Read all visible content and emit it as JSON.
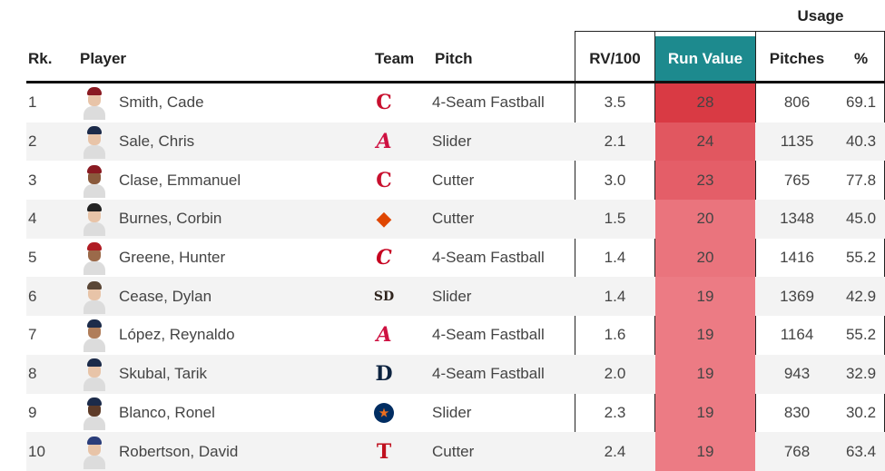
{
  "header": {
    "usage_group": "Usage",
    "rank": "Rk.",
    "player": "Player",
    "team": "Team",
    "pitch": "Pitch",
    "rv100": "RV/100",
    "run_value": "Run Value",
    "pitches": "Pitches",
    "pct": "%"
  },
  "colors": {
    "run_value_header": "#1d8a8e",
    "run_value_high": "#d93a44",
    "run_value_low": "#ec7b84"
  },
  "rows": [
    {
      "rank": "1",
      "player": "Smith, Cade",
      "team_icon": "guardians-c-logo",
      "pitch": "4-Seam Fastball",
      "rv100": "3.5",
      "run_value": "28",
      "pitches": "806",
      "pct": "69.1"
    },
    {
      "rank": "2",
      "player": "Sale, Chris",
      "team_icon": "braves-a-logo",
      "pitch": "Slider",
      "rv100": "2.1",
      "run_value": "24",
      "pitches": "1135",
      "pct": "40.3"
    },
    {
      "rank": "3",
      "player": "Clase, Emmanuel",
      "team_icon": "guardians-c-logo",
      "pitch": "Cutter",
      "rv100": "3.0",
      "run_value": "23",
      "pitches": "765",
      "pct": "77.8"
    },
    {
      "rank": "4",
      "player": "Burnes, Corbin",
      "team_icon": "orioles-bird-logo",
      "pitch": "Cutter",
      "rv100": "1.5",
      "run_value": "20",
      "pitches": "1348",
      "pct": "45.0"
    },
    {
      "rank": "5",
      "player": "Greene, Hunter",
      "team_icon": "reds-c-logo",
      "pitch": "4-Seam Fastball",
      "rv100": "1.4",
      "run_value": "20",
      "pitches": "1416",
      "pct": "55.2"
    },
    {
      "rank": "6",
      "player": "Cease, Dylan",
      "team_icon": "padres-sd-logo",
      "pitch": "Slider",
      "rv100": "1.4",
      "run_value": "19",
      "pitches": "1369",
      "pct": "42.9"
    },
    {
      "rank": "7",
      "player": "López, Reynaldo",
      "team_icon": "braves-a-logo",
      "pitch": "4-Seam Fastball",
      "rv100": "1.6",
      "run_value": "19",
      "pitches": "1164",
      "pct": "55.2"
    },
    {
      "rank": "8",
      "player": "Skubal, Tarik",
      "team_icon": "tigers-d-logo",
      "pitch": "4-Seam Fastball",
      "rv100": "2.0",
      "run_value": "19",
      "pitches": "943",
      "pct": "32.9"
    },
    {
      "rank": "9",
      "player": "Blanco, Ronel",
      "team_icon": "astros-star-logo",
      "pitch": "Slider",
      "rv100": "2.3",
      "run_value": "19",
      "pitches": "830",
      "pct": "30.2"
    },
    {
      "rank": "10",
      "player": "Robertson, David",
      "team_icon": "rangers-t-logo",
      "pitch": "Cutter",
      "rv100": "2.4",
      "run_value": "19",
      "pitches": "768",
      "pct": "63.4"
    }
  ]
}
